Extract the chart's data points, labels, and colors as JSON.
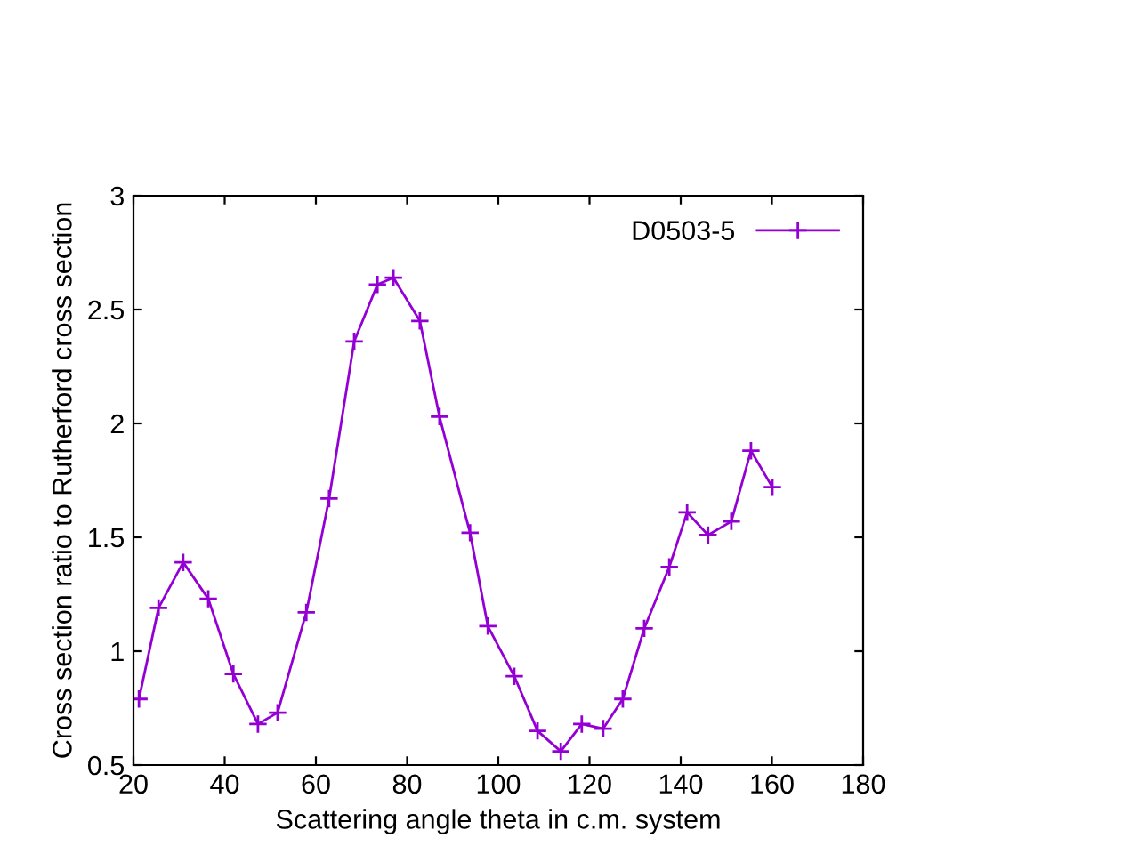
{
  "chart_data": {
    "type": "line",
    "xlabel": "Scattering angle theta in c.m. system",
    "ylabel": "Cross section ratio to Rutherford cross section",
    "x": [
      21.2,
      25.5,
      30.9,
      36.4,
      41.9,
      47.3,
      51.6,
      57.9,
      62.9,
      68.4,
      73.5,
      77.0,
      82.8,
      87.1,
      93.8,
      97.7,
      103.5,
      108.6,
      113.7,
      118.3,
      123.0,
      127.3,
      132.0,
      137.5,
      141.4,
      146.0,
      151.1,
      155.4,
      160.1
    ],
    "series": [
      {
        "name": "D0503-5",
        "color": "#9400d3",
        "values": [
          0.79,
          1.19,
          1.39,
          1.23,
          0.9,
          0.68,
          0.73,
          1.17,
          1.67,
          2.36,
          2.61,
          2.64,
          2.45,
          2.03,
          1.52,
          1.11,
          0.89,
          0.65,
          0.56,
          0.68,
          0.66,
          0.79,
          1.1,
          1.37,
          1.61,
          1.51,
          1.57,
          1.88,
          1.72
        ]
      }
    ],
    "xlim": [
      20,
      180
    ],
    "xticks": [
      20,
      40,
      60,
      80,
      100,
      120,
      140,
      160,
      180
    ],
    "ylim": [
      0.5,
      3
    ],
    "yticks": [
      0.5,
      1,
      1.5,
      2,
      2.5,
      3
    ],
    "grid": false,
    "legend": "top right",
    "marker": "cross",
    "line_style": "solid"
  }
}
